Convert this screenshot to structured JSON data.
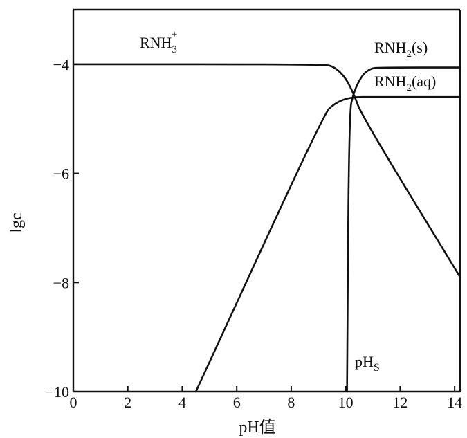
{
  "chart_data": {
    "type": "line",
    "title": "",
    "xlabel": "pH值",
    "ylabel": "lgc",
    "xlim": [
      0,
      14.2
    ],
    "ylim": [
      -10,
      -3
    ],
    "x_ticks": [
      0,
      2,
      4,
      6,
      8,
      10,
      12,
      14
    ],
    "y_ticks": [
      -4,
      -6,
      -8,
      -10
    ],
    "x_tick_labels": [
      "0",
      "2",
      "4",
      "6",
      "8",
      "10",
      "12",
      "14"
    ],
    "y_tick_labels": [
      "−4",
      "−6",
      "−8",
      "−10"
    ],
    "grid": false,
    "legend": "none",
    "series": [
      {
        "name": "RNH3+",
        "label_main": "RNH",
        "label_sub": "3",
        "label_sup": "+",
        "x": [
          0,
          9.2,
          9.6,
          10.0,
          10.3,
          10.6,
          14.2
        ],
        "y": [
          -4.0,
          -4.0,
          -4.05,
          -4.25,
          -4.55,
          -4.95,
          -7.9
        ]
      },
      {
        "name": "RNH2(s)",
        "label_main": "RNH",
        "label_sub": "2",
        "label_tail": "(s)",
        "x": [
          10.05,
          10.12,
          10.3,
          10.6,
          10.9,
          11.2,
          14.2
        ],
        "y": [
          -10.0,
          -4.9,
          -4.5,
          -4.2,
          -4.08,
          -4.06,
          -4.06
        ]
      },
      {
        "name": "RNH2(aq)",
        "label_main": "RNH",
        "label_sub": "2",
        "label_tail": "(aq)",
        "x": [
          4.5,
          9.2,
          9.6,
          10.0,
          10.4,
          10.8,
          14.2
        ],
        "y": [
          -10.0,
          -4.9,
          -4.72,
          -4.63,
          -4.6,
          -4.6,
          -4.6
        ]
      }
    ],
    "annotations": [
      {
        "text_main": "pH",
        "text_sub": "S",
        "x": 10.0,
        "y": -9.65
      }
    ]
  }
}
